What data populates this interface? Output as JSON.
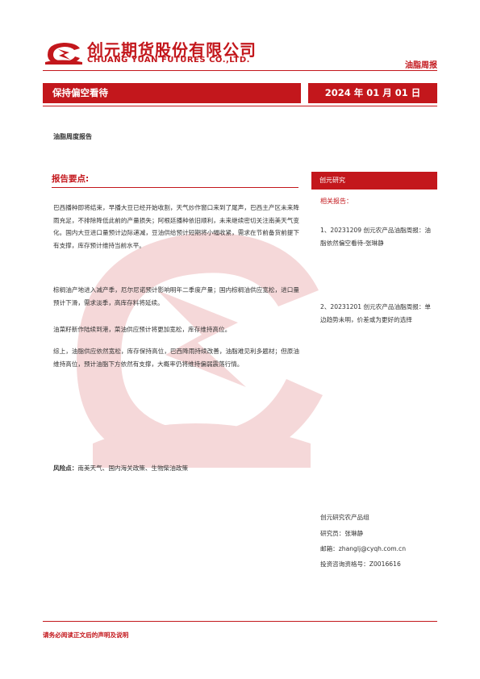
{
  "header": {
    "company_cn": "创元期货股份有限公司",
    "company_en": "CHUANG YUAN FUTURES CO.,LTD.",
    "report_type": "油脂周报"
  },
  "title_bar": {
    "title": "保持偏空看待",
    "date": "2024 年 01 月 01 日"
  },
  "subtitle": "油脂周度报告",
  "key_points": {
    "heading": "报告要点:",
    "paragraphs": [
      "巴西播种即将结束，早播大豆已经开始收割，天气炒作窗口来到了尾声，巴西主产区未来降雨充足，不排除降低此前的产量损失；阿根廷播种依旧顺利，未来继续密切关注南美天气变化。国内大豆进口量预计边际递减，豆油供给预计短期将小幅收紧，需求在节前备货前提下有支撑，库存预计维持当前水平。",
      "棕榈油产地进入减产季，厄尔尼诺预计影响明年二季度产量；国内棕榈油供应宽松，进口量预计下滑，需求淡季，高库存料将延续。",
      "油菜籽新作陆续到港，菜油供应预计将更加宽松，库存维持高位。",
      "综上，油脂供应依然宽松，库存保持高位，巴西降雨持续改善，油脂难见利多题材；但原油维持高位，预计油脂下方依然有支撑，大概率仍将维持偏弱震荡行情。"
    ]
  },
  "risk": {
    "label": "风险点：",
    "text": "南美天气、国内海关政策、生物柴油政策"
  },
  "sidebar": {
    "header": "创元研究",
    "related_label": "相关报告：",
    "items": [
      "1、20231209 创元农产品油脂周报：油脂依然偏空看待-张琳静",
      "2、20231201 创元农产品油脂周报：单边趋势未明，价差或为更好的选择"
    ]
  },
  "contact": {
    "group": "创元研究农产品组",
    "researcher": "研究员：张琳静",
    "email": "邮箱：zhanglj@cyqh.com.cn",
    "license": "投资咨询资格号：Z0016616"
  },
  "footer": {
    "disclaimer": "请务必阅读正文后的声明及说明"
  },
  "colors": {
    "brand_red": "#c3171c",
    "text": "#333333"
  }
}
